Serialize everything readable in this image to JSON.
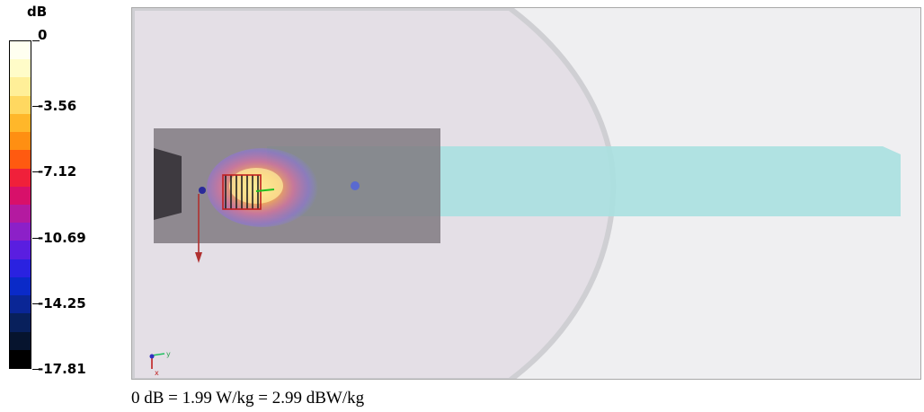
{
  "legend": {
    "unit": "dB",
    "ticks": [
      "0",
      "-3.56",
      "-7.12",
      "-10.69",
      "-14.25",
      "-17.81"
    ],
    "colors": [
      "#fffff0",
      "#fffcc8",
      "#ffef98",
      "#ffd860",
      "#ffb72a",
      "#ff8f12",
      "#ff5a10",
      "#f0203a",
      "#d8106a",
      "#b41aa0",
      "#8c20c8",
      "#5a1ee0",
      "#2a22e0",
      "#0a2ac8",
      "#0a2696",
      "#08205c",
      "#06142e",
      "#000000"
    ]
  },
  "caption": "0 dB = 1.99 W/kg = 2.99 dBW/kg",
  "axes": {
    "y_label": "y",
    "x_label": "x"
  }
}
